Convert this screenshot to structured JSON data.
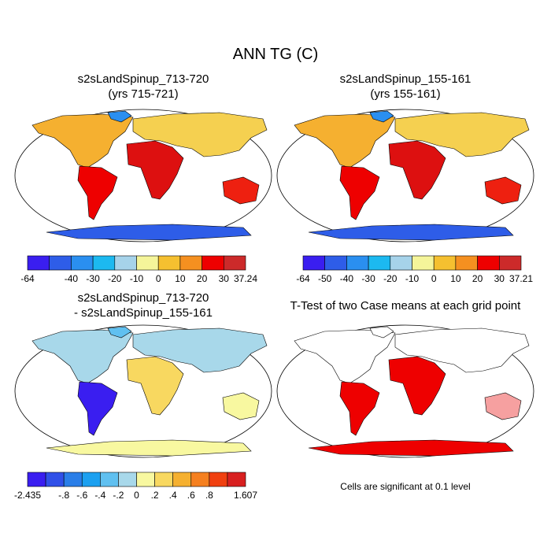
{
  "title": "ANN TG (C)",
  "panels": [
    {
      "title": [
        "s2sLandSpinup_713-720",
        "(yrs 715-721)"
      ],
      "colorbar": {
        "colors": [
          "#3a1ef0",
          "#2e5de8",
          "#2a8ff0",
          "#1cb9f0",
          "#a6d3ea",
          "#f5f59a",
          "#f5c030",
          "#f59020",
          "#ee0000",
          "#cc2a2a"
        ],
        "labels": [
          "-64",
          null,
          "-40",
          "-30",
          "-20",
          "-10",
          "0",
          "10",
          "20",
          "30",
          "37.24"
        ]
      }
    },
    {
      "title": [
        "s2sLandSpinup_155-161",
        "(yrs 155-161)"
      ],
      "colorbar": {
        "colors": [
          "#3a1ef0",
          "#2e5de8",
          "#2a8ff0",
          "#1cb9f0",
          "#a6d3ea",
          "#f5f59a",
          "#f5c030",
          "#f59020",
          "#ee0000",
          "#cc2a2a"
        ],
        "labels": [
          "-64",
          "-50",
          "-40",
          "-30",
          "-20",
          "-10",
          "0",
          "10",
          "20",
          "30",
          "37.21"
        ]
      }
    },
    {
      "title": [
        "s2sLandSpinup_713-720",
        "- s2sLandSpinup_155-161"
      ],
      "colorbar": {
        "colors": [
          "#3a1ef0",
          "#3050e8",
          "#2a7ee8",
          "#1ca0f0",
          "#60c0f0",
          "#a8d8ea",
          "#f8f8a0",
          "#f8d860",
          "#f5b030",
          "#f58020",
          "#f04010",
          "#d82020"
        ],
        "labels": [
          "-2.435",
          null,
          "-.8",
          "-.6",
          "-.4",
          "-.2",
          "0",
          ".2",
          ".4",
          ".6",
          ".8",
          null,
          "1.607"
        ]
      }
    },
    {
      "title": [
        "T-Test of two Case means at each grid point"
      ],
      "note": "Cells are significant at 0.1 level"
    }
  ]
}
